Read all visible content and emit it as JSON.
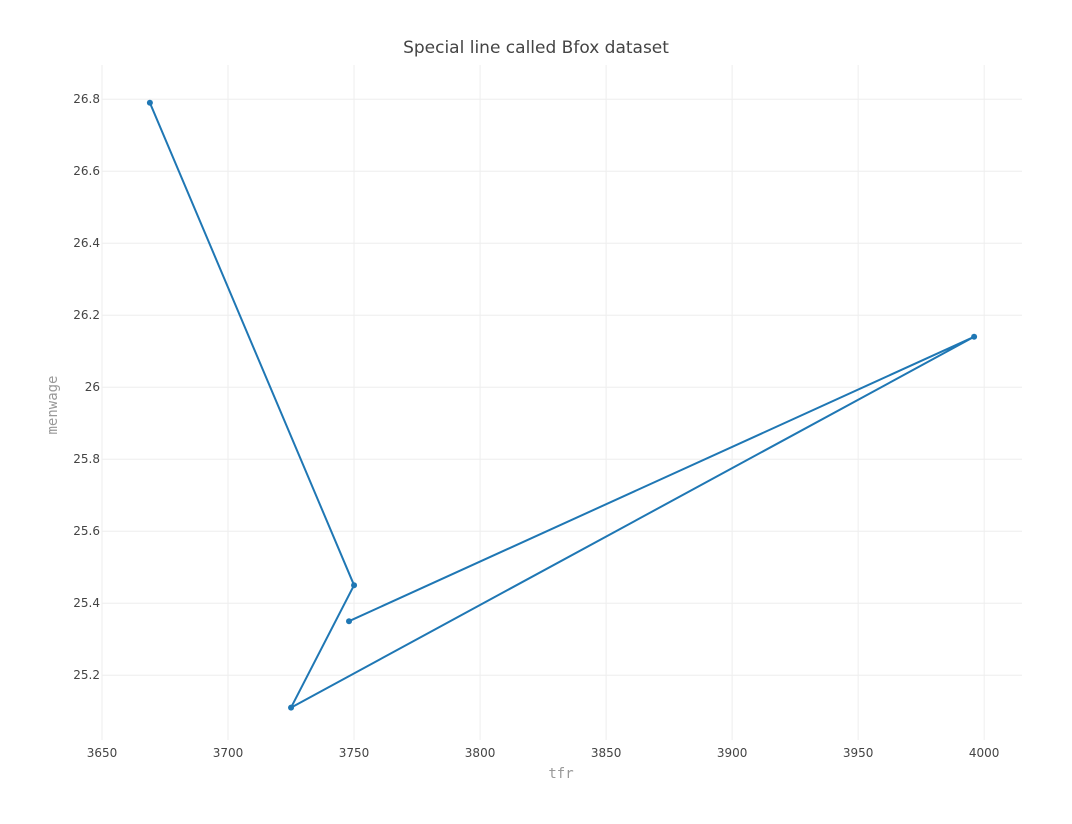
{
  "chart_data": {
    "type": "line",
    "title": "Special line called Bfox dataset",
    "xlabel": "tfr",
    "ylabel": "menwage",
    "xlim": [
      3650,
      4015
    ],
    "ylim": [
      25.02,
      26.895
    ],
    "x_ticks": [
      3650,
      3700,
      3750,
      3800,
      3850,
      3900,
      3950,
      4000
    ],
    "x_tick_labels": [
      "3650",
      "3700",
      "3750",
      "3800",
      "3850",
      "3900",
      "3950",
      "4000"
    ],
    "y_ticks": [
      25.2,
      25.4,
      25.6,
      25.8,
      26.0,
      26.2,
      26.4,
      26.6,
      26.8
    ],
    "y_tick_labels": [
      "25.2",
      "25.4",
      "25.6",
      "25.8",
      "26",
      "26.2",
      "26.4",
      "26.6",
      "26.8"
    ],
    "grid": true,
    "markers": true,
    "series": [
      {
        "color": "#1f77b4",
        "x": [
          3669,
          3750,
          3725,
          3996,
          3748
        ],
        "y": [
          26.79,
          25.45,
          25.11,
          26.14,
          25.35
        ]
      }
    ]
  }
}
